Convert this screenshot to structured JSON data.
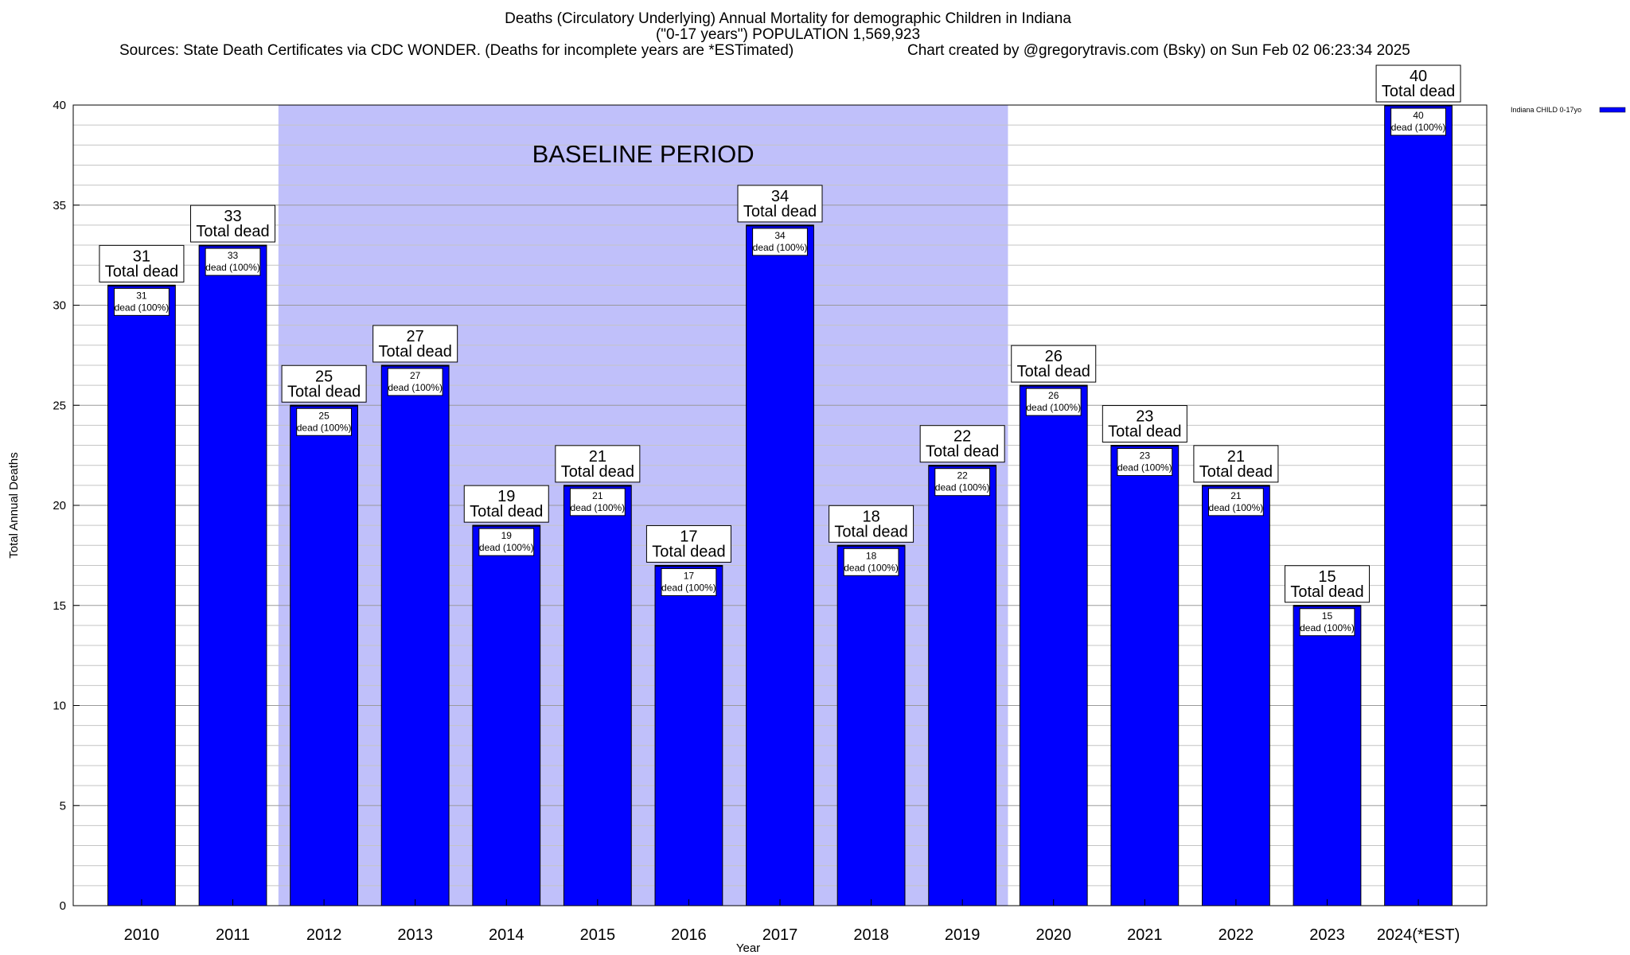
{
  "header": {
    "title_line1": "Deaths (Circulatory Underlying) Annual Mortality for demographic Children in Indiana",
    "title_line2": "(\"0-17 years\") POPULATION 1,569,923",
    "sources": "Sources: State Death Certificates via CDC WONDER. (Deaths for incomplete years are *ESTimated)",
    "credit": "Chart created by @gregorytravis.com (Bsky) on Sun Feb 02 06:23:34 2025"
  },
  "chart_data": {
    "type": "bar",
    "categories": [
      "2010",
      "2011",
      "2012",
      "2013",
      "2014",
      "2015",
      "2016",
      "2017",
      "2018",
      "2019",
      "2020",
      "2021",
      "2022",
      "2023",
      "2024(*EST)"
    ],
    "series": [
      {
        "name": "Indiana CHILD 0-17yo",
        "values": [
          31,
          33,
          25,
          27,
          19,
          21,
          17,
          34,
          18,
          22,
          26,
          23,
          21,
          15,
          40
        ],
        "color": "#0000ff"
      }
    ],
    "total_label": "Total dead",
    "inner_label": "dead (100%)",
    "xlabel": "Year",
    "ylabel": "Total Annual Deaths",
    "ylim": [
      0,
      40
    ],
    "yticks": [
      0,
      5,
      10,
      15,
      20,
      25,
      30,
      35,
      40
    ],
    "grid": true,
    "legend_position": "top-right",
    "baseline": {
      "label": "BASELINE PERIOD",
      "start": "2012",
      "end": "2019",
      "color": "#c0c0fa"
    }
  }
}
